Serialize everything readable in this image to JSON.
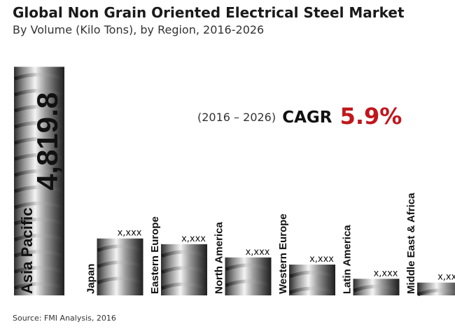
{
  "header": {
    "title": "Global Non Grain Oriented Electrical Steel Market",
    "subtitle": "By Volume (Kilo Tons), by Region, 2016-2026"
  },
  "cagr": {
    "period": "(2016 – 2026)",
    "label": "CAGR",
    "value": "5.9%",
    "value_color": "#c0161c"
  },
  "chart_data": {
    "type": "bar",
    "categories": [
      "Asia Pacific",
      "Japan",
      "Eastern Europe",
      "North America",
      "Western Europe",
      "Latin America",
      "Middle East & Africa"
    ],
    "values": [
      4819.8,
      1200,
      1080,
      800,
      650,
      350,
      270
    ],
    "value_labels": [
      "4,819.8",
      "x,xxx",
      "x,xxx",
      "x,xxx",
      "x,xxx",
      "x,xxx",
      "x,xxx"
    ],
    "title": "",
    "xlabel": "",
    "ylabel": "",
    "ylim": [
      0,
      4900
    ],
    "grid": false,
    "legend": "none",
    "bar_style": "steel-rebar"
  },
  "footer": {
    "source": "Source: FMI Analysis, 2016"
  }
}
